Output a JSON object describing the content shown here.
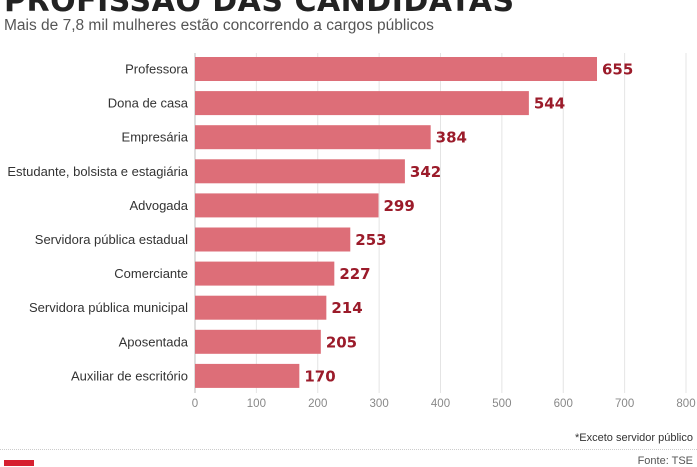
{
  "chart_data": {
    "type": "bar",
    "orientation": "horizontal",
    "title": "PROFISSÃO DAS CANDIDATAS",
    "subtitle": "Mais de 7,8 mil mulheres estão concorrendo a cargos públicos",
    "categories": [
      "Professora",
      "Dona de casa",
      "Empresária",
      "Estudante, bolsista e estagiária",
      "Advogada",
      "Servidora pública estadual",
      "Comerciante",
      "Servidora pública municipal",
      "Aposentada",
      "Auxiliar de escritório"
    ],
    "values": [
      655,
      544,
      384,
      342,
      299,
      253,
      227,
      214,
      205,
      170
    ],
    "xlim": [
      0,
      800
    ],
    "xticks": [
      0,
      100,
      200,
      300,
      400,
      500,
      600,
      700,
      800
    ],
    "grid": true,
    "bar_color": "#dd6e78",
    "label_color": "#9b1b2a",
    "note": "*Exceto servidor público",
    "source": "Fonte: TSE"
  }
}
